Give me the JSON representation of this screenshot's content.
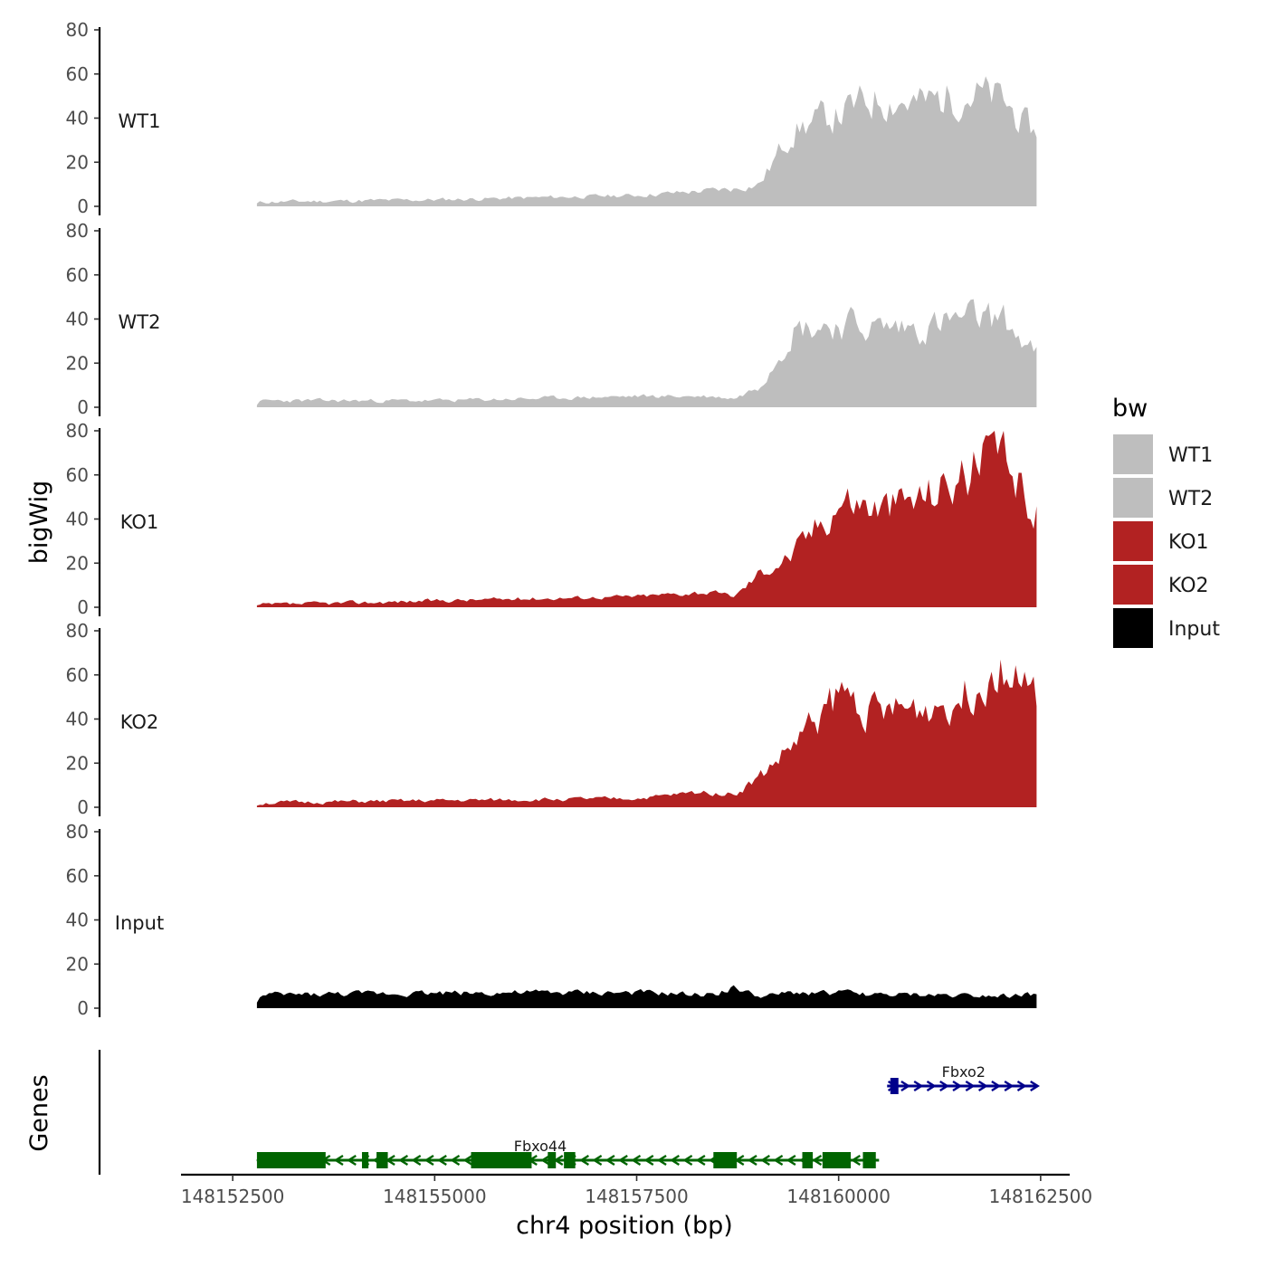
{
  "chart_data": {
    "type": "area",
    "ylabel": "bigWig",
    "xlabel": "chr4 position (bp)",
    "ylim": [
      0,
      80
    ],
    "yticks": [
      0,
      20,
      40,
      60,
      80
    ],
    "xlim": [
      148151860,
      148162860
    ],
    "xticks": [
      148152500,
      148155000,
      148157500,
      148160000,
      148162500
    ],
    "x_knots": [
      148152800,
      148155000,
      148157500,
      148158300,
      148158700,
      148159000,
      148159400,
      148160000,
      148160500,
      148161000,
      148161500,
      148162000,
      148162400
    ],
    "legend": {
      "title": "bw",
      "entries": [
        {
          "name": "WT1",
          "color": "#bebebe"
        },
        {
          "name": "WT2",
          "color": "#bebebe"
        },
        {
          "name": "KO1",
          "color": "#b22222"
        },
        {
          "name": "KO2",
          "color": "#b22222"
        },
        {
          "name": "Input",
          "color": "#000000"
        }
      ]
    },
    "series": [
      {
        "name": "WT1",
        "color": "#bebebe",
        "seed": 11,
        "values": [
          2,
          3,
          5,
          7,
          8,
          10,
          35,
          42,
          50,
          46,
          52,
          48,
          32
        ]
      },
      {
        "name": "WT2",
        "color": "#bebebe",
        "seed": 23,
        "values": [
          3,
          3,
          5,
          5,
          4,
          10,
          36,
          38,
          36,
          36,
          40,
          40,
          24
        ]
      },
      {
        "name": "KO1",
        "color": "#b22222",
        "seed": 37,
        "values": [
          1,
          3,
          5,
          7,
          5,
          16,
          24,
          50,
          45,
          50,
          60,
          70,
          42
        ]
      },
      {
        "name": "KO2",
        "color": "#b22222",
        "seed": 51,
        "values": [
          2,
          3,
          4,
          7,
          6,
          14,
          28,
          52,
          42,
          45,
          50,
          68,
          48
        ]
      },
      {
        "name": "Input",
        "color": "#000000",
        "seed": 73,
        "values": [
          6,
          7,
          7,
          6,
          9,
          5,
          7,
          7,
          6,
          6,
          6,
          6,
          6
        ]
      }
    ],
    "genes_track": {
      "ylabel": "Genes",
      "genes": [
        {
          "name": "Fbxo2",
          "color": "#00008b",
          "strand": "+",
          "start": 148160600,
          "end": 148162450,
          "exons": [
            [
              148160640,
              148160740
            ]
          ]
        },
        {
          "name": "Fbxo44",
          "color": "#006400",
          "strand": "-",
          "start": 148152800,
          "end": 148160500,
          "exons": [
            [
              148152800,
              148153650
            ],
            [
              148154100,
              148154180
            ],
            [
              148154280,
              148154420
            ],
            [
              148155450,
              148156200
            ],
            [
              148156400,
              148156500
            ],
            [
              148156600,
              148156740
            ],
            [
              148158450,
              148158740
            ],
            [
              148159550,
              148159680
            ],
            [
              148159800,
              148160150
            ],
            [
              148160300,
              148160460
            ]
          ]
        }
      ]
    }
  }
}
